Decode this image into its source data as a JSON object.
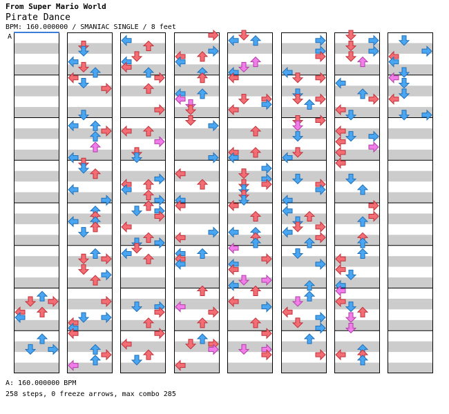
{
  "header": {
    "source": "From Super Mario World",
    "song_title": "Pirate Dance",
    "bpm_info": "BPM: 160.000000 / SMANIAC SINGLE / 8 feet"
  },
  "bpm_marker": {
    "label": "A"
  },
  "footer": {
    "bpm_list": "A: 160.000000 BPM",
    "stats": "258 steps, 0 freeze arrows, max combo 285"
  },
  "chart_data": {
    "type": "stepchart",
    "columns": 8,
    "measures_per_column": 8,
    "lanes": [
      "left",
      "down",
      "up",
      "right"
    ],
    "colors": {
      "quarter": "#f26d74",
      "eighth": "#4aa6f0",
      "sixteenth": "#f07de8",
      "stripe": "#cccccc",
      "border": "#000000",
      "bpm_line": "#3b7dd8"
    }
  }
}
